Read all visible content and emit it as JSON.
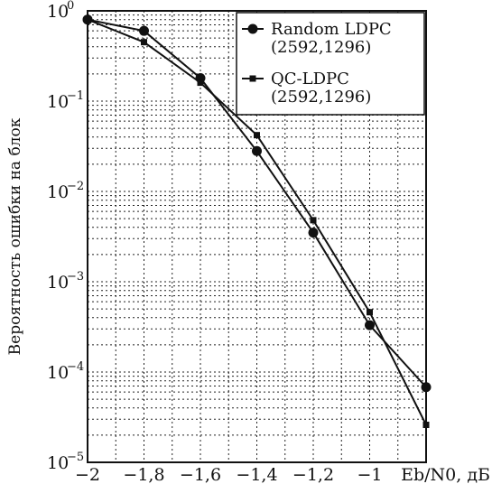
{
  "chart_data": {
    "type": "line",
    "xlabel": "Eb/N0, дБ",
    "ylabel": "Вероятность ошибки на блок",
    "xlim": [
      -2,
      -0.8
    ],
    "ylim": [
      1e-05,
      1
    ],
    "yscale": "log",
    "grid": true,
    "legend_position": "top-right",
    "x_tick_labels": [
      "−2",
      "−1,8",
      "−1,6",
      "−1,4",
      "−1,2",
      "−1"
    ],
    "x_ticks": [
      -2,
      -1.8,
      -1.6,
      -1.4,
      -1.2,
      -1
    ],
    "y_ticks": [
      1,
      0.1,
      0.01,
      0.001,
      0.0001,
      1e-05
    ],
    "y_tick_exponents": [
      "0",
      "−1",
      "−2",
      "−3",
      "−4",
      "−5"
    ],
    "y_tick_base": "10",
    "series": [
      {
        "name": "Random LDPC",
        "name_line2": "(2592,1296)",
        "marker": "circle",
        "color": "#111111",
        "x": [
          -2,
          -1.8,
          -1.6,
          -1.4,
          -1.2,
          -1,
          -0.8
        ],
        "y": [
          0.8,
          0.6,
          0.18,
          0.028,
          0.0035,
          0.00033,
          6.8e-05
        ]
      },
      {
        "name": "QC-LDPC",
        "name_line2": "(2592,1296)",
        "marker": "square",
        "color": "#111111",
        "x": [
          -2,
          -1.8,
          -1.6,
          -1.4,
          -1.2,
          -1,
          -0.8
        ],
        "y": [
          0.8,
          0.45,
          0.16,
          0.042,
          0.0048,
          0.00046,
          2.6e-05
        ]
      }
    ]
  }
}
